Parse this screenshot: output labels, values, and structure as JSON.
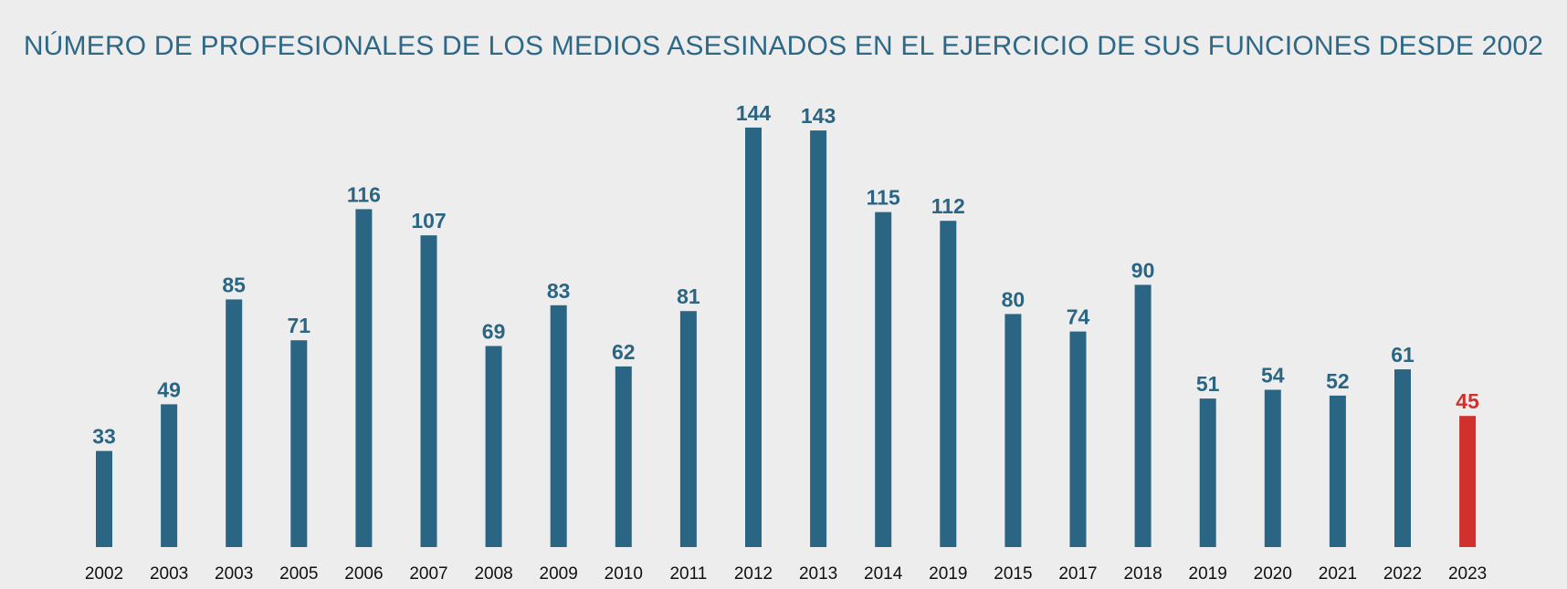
{
  "title": "NÚMERO DE PROFESIONALES DE LOS MEDIOS ASESINADOS EN EL EJERCICIO DE SUS FUNCIONES DESDE 2002",
  "colors": {
    "bar": "#2b6584",
    "highlight": "#d0312d",
    "title": "#2e6887",
    "background": "#ededed"
  },
  "chart_data": {
    "type": "bar",
    "title": "NÚMERO DE PROFESIONALES DE LOS MEDIOS ASESINADOS EN EL EJERCICIO DE SUS FUNCIONES DESDE 2002",
    "xlabel": "",
    "ylabel": "",
    "categories": [
      "2002",
      "2003",
      "2003",
      "2005",
      "2006",
      "2007",
      "2008",
      "2009",
      "2010",
      "2011",
      "2012",
      "2013",
      "2014",
      "2019",
      "2015",
      "2017",
      "2018",
      "2019",
      "2020",
      "2021",
      "2022",
      "2023"
    ],
    "values": [
      33,
      49,
      85,
      71,
      116,
      107,
      69,
      83,
      62,
      81,
      144,
      143,
      115,
      112,
      80,
      74,
      90,
      51,
      54,
      52,
      61,
      45
    ],
    "highlight_category_index": 21,
    "ylim": [
      0,
      150
    ],
    "grid": false,
    "legend": "none",
    "data_labels": true
  }
}
